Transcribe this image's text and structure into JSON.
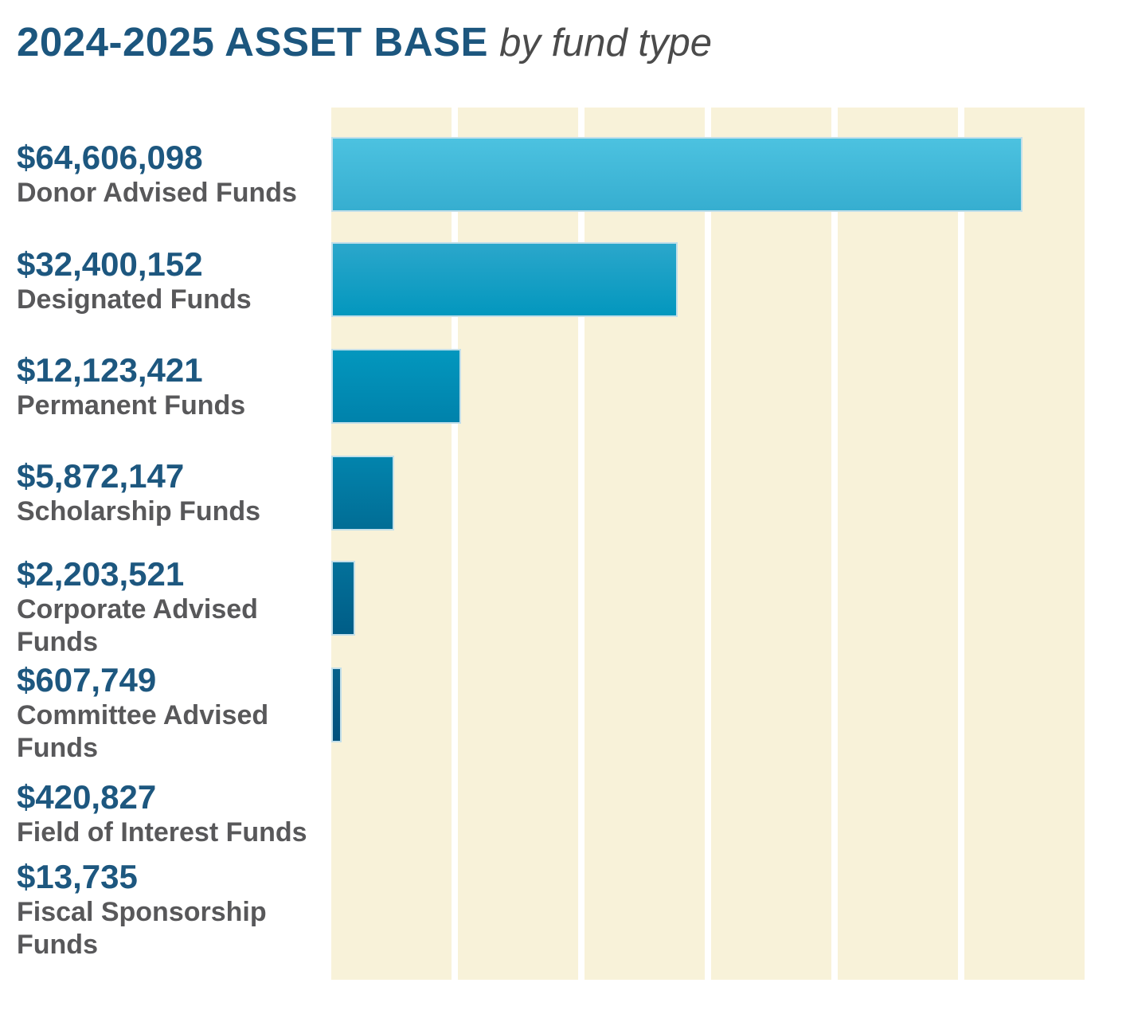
{
  "header": {
    "title": "2024-2025 ASSET BASE",
    "subtitle": "by fund type",
    "title_color": "#1c567e",
    "subtitle_color": "#4b4b4b"
  },
  "chart_data": {
    "type": "bar",
    "orientation": "horizontal",
    "title": "2024-2025 ASSET BASE",
    "subtitle": "by fund type",
    "categories": [
      "Donor Advised Funds",
      "Designated Funds",
      "Permanent Funds",
      "Scholarship Funds",
      "Corporate Advised Funds",
      "Committee Advised Funds",
      "Field of Interest Funds",
      "Fiscal Sponsorship Funds"
    ],
    "values": [
      64606098,
      32400152,
      12123421,
      5872147,
      2203521,
      607749,
      420827,
      13735
    ],
    "scale_max": 70400000,
    "value_axis": {
      "min": 0,
      "max_estimated": 70400000,
      "tick_labels_shown": false,
      "gridlines_visible": true,
      "gridline_color": "#ffffff",
      "plot_background": "#f8f2d9"
    },
    "legend": "none",
    "value_text_color": "#1d577f",
    "name_text_color": "#58585a",
    "rows": [
      {
        "value": 64606098,
        "value_label": "$64,606,098",
        "name": "Donor Advised Funds",
        "name_lines": [
          "Donor Advised Funds"
        ],
        "bar_color_top": "#4cc2e0",
        "bar_color_bottom": "#36aed0",
        "bar_visible": true
      },
      {
        "value": 32400152,
        "value_label": "$32,400,152",
        "name": "Designated Funds",
        "name_lines": [
          "Designated Funds"
        ],
        "bar_color_top": "#2ba7cb",
        "bar_color_bottom": "#0397be",
        "bar_visible": true
      },
      {
        "value": 12123421,
        "value_label": "$12,123,421",
        "name": "Permanent Funds",
        "name_lines": [
          "Permanent Funds"
        ],
        "bar_color_top": "#0397be",
        "bar_color_bottom": "#0082ab",
        "bar_visible": true
      },
      {
        "value": 5872147,
        "value_label": "$5,872,147",
        "name": "Scholarship Funds",
        "name_lines": [
          "Scholarship Funds"
        ],
        "bar_color_top": "#0284ad",
        "bar_color_bottom": "#016d95",
        "bar_visible": true
      },
      {
        "value": 2203521,
        "value_label": "$2,203,521",
        "name": "Corporate Advised Funds",
        "name_lines": [
          "Corporate Advised",
          "Funds"
        ],
        "bar_color_top": "#03719a",
        "bar_color_bottom": "#005d87",
        "bar_visible": true
      },
      {
        "value": 607749,
        "value_label": "$607,749",
        "name": "Committee Advised Funds",
        "name_lines": [
          "Committee Advised",
          "Funds"
        ],
        "bar_color_top": "#07618b",
        "bar_color_bottom": "#00507c",
        "bar_visible": true
      },
      {
        "value": 420827,
        "value_label": "$420,827",
        "name": "Field of Interest Funds",
        "name_lines": [
          "Field of Interest Funds"
        ],
        "bar_color_top": "#07618b",
        "bar_color_bottom": "#00507c",
        "bar_visible": false
      },
      {
        "value": 13735,
        "value_label": "$13,735",
        "name": "Fiscal Sponsorship Funds",
        "name_lines": [
          "Fiscal Sponsorship",
          "Funds"
        ],
        "bar_color_top": "#07618b",
        "bar_color_bottom": "#00507c",
        "bar_visible": false
      }
    ]
  }
}
